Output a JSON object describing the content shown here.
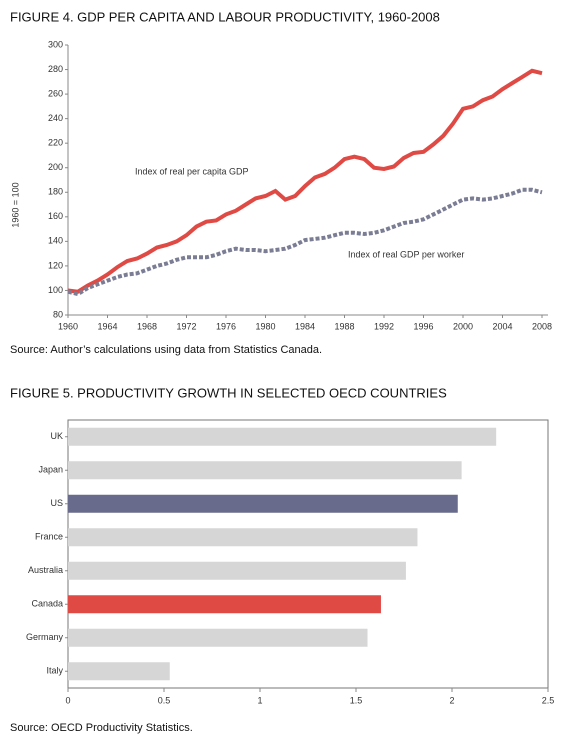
{
  "chart_data": [
    {
      "type": "line",
      "title": "FIGURE 4. GDP PER CAPITA AND LABOUR PRODUCTIVITY, 1960-2008",
      "y_label": "1960 = 100",
      "x": [
        1960,
        1961,
        1962,
        1963,
        1964,
        1965,
        1966,
        1967,
        1968,
        1969,
        1970,
        1971,
        1972,
        1973,
        1974,
        1975,
        1976,
        1977,
        1978,
        1979,
        1980,
        1981,
        1982,
        1983,
        1984,
        1985,
        1986,
        1987,
        1988,
        1989,
        1990,
        1991,
        1992,
        1993,
        1994,
        1995,
        1996,
        1997,
        1998,
        1999,
        2000,
        2001,
        2002,
        2003,
        2004,
        2005,
        2006,
        2007,
        2008
      ],
      "series": [
        {
          "name": "Index of real per capita GDP",
          "color": "#e04a45",
          "dashed": false,
          "values": [
            100,
            99,
            104,
            108,
            113,
            119,
            124,
            126,
            130,
            135,
            137,
            140,
            145,
            152,
            156,
            157,
            162,
            165,
            170,
            175,
            177,
            181,
            174,
            177,
            185,
            192,
            195,
            200,
            207,
            209,
            207,
            200,
            199,
            201,
            208,
            212,
            213,
            219,
            226,
            236,
            248,
            250,
            255,
            258,
            264,
            269,
            274,
            279,
            277
          ]
        },
        {
          "name": "Index of real GDP per worker",
          "color": "#7a7d94",
          "dashed": true,
          "values": [
            99,
            97,
            102,
            105,
            108,
            111,
            113,
            114,
            117,
            120,
            122,
            125,
            127,
            127,
            127,
            129,
            132,
            134,
            133,
            133,
            132,
            133,
            134,
            137,
            141,
            142,
            143,
            145,
            147,
            147,
            146,
            147,
            149,
            152,
            155,
            156,
            158,
            162,
            166,
            170,
            174,
            175,
            174,
            175,
            177,
            179,
            182,
            182,
            180
          ]
        }
      ],
      "xlim": [
        1960,
        2008
      ],
      "xticks": [
        1960,
        1964,
        1968,
        1972,
        1976,
        1980,
        1984,
        1988,
        1992,
        1996,
        2000,
        2004,
        2008
      ],
      "ylim": [
        80,
        300
      ],
      "yticks": [
        80,
        100,
        120,
        140,
        160,
        180,
        200,
        220,
        240,
        260,
        280,
        300
      ],
      "grid": false,
      "source": "Source: Author’s calculations using data from Statistics Canada."
    },
    {
      "type": "hbar",
      "title": "FIGURE 5. PRODUCTIVITY GROWTH IN SELECTED OECD COUNTRIES",
      "categories": [
        "UK",
        "Japan",
        "US",
        "France",
        "Australia",
        "Canada",
        "Germany",
        "Italy"
      ],
      "values": [
        2.23,
        2.05,
        2.03,
        1.82,
        1.76,
        1.63,
        1.56,
        0.53
      ],
      "colors": [
        "#d6d6d6",
        "#d6d6d6",
        "#686b8c",
        "#d6d6d6",
        "#d6d6d6",
        "#e04a45",
        "#d6d6d6",
        "#d6d6d6"
      ],
      "xlim": [
        0,
        2.5
      ],
      "xticks": [
        0,
        0.5,
        1,
        1.5,
        2,
        2.5
      ],
      "grid": false,
      "source": "Source: OECD Productivity Statistics."
    }
  ]
}
